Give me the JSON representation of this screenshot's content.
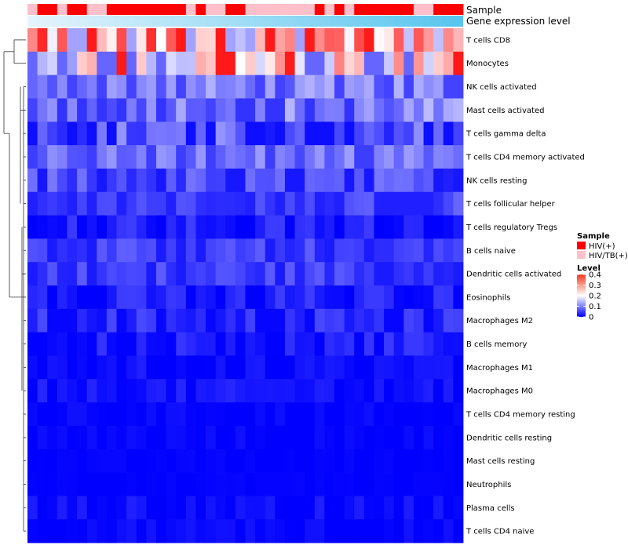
{
  "chart_data": {
    "type": "heatmap",
    "annotations": {
      "sample_label": "Sample",
      "gene_label": "Gene expression level"
    },
    "rows": [
      "T cells CD8",
      "Monocytes",
      "NK cells activated",
      "Mast cells activated",
      "T cells gamma delta",
      "T cells CD4 memory activated",
      "NK cells resting",
      "T cells follicular helper",
      "T cells regulatory  Tregs",
      "B cells naive",
      "Dendritic cells activated",
      "Eosinophils",
      "Macrophages M2",
      "B cells memory",
      "Macrophages M1",
      "Macrophages M0",
      "T cells CD4 memory resting",
      "Dendritic cells resting",
      "Mast cells resting",
      "Neutrophils",
      "Plasma cells",
      "T cells CD4 naive"
    ],
    "samples": [
      "P",
      "R",
      "R",
      "P",
      "R",
      "R",
      "P",
      "P",
      "R",
      "R",
      "R",
      "R",
      "R",
      "R",
      "R",
      "R",
      "P",
      "R",
      "P",
      "P",
      "R",
      "R",
      "P",
      "P",
      "P",
      "P",
      "P",
      "P",
      "P",
      "R",
      "P",
      "R",
      "P",
      "R",
      "R",
      "R",
      "R",
      "R",
      "R",
      "P",
      "P",
      "R",
      "R",
      "R"
    ],
    "row_means": [
      0.26,
      0.2,
      0.1,
      0.1,
      0.07,
      0.09,
      0.06,
      0.06,
      0.025,
      0.05,
      0.05,
      0.025,
      0.035,
      0.025,
      0.01,
      0.015,
      0.005,
      0.005,
      0.002,
      0.002,
      0.01,
      0.008
    ],
    "row_spread": [
      0.11,
      0.1,
      0.04,
      0.05,
      0.05,
      0.035,
      0.035,
      0.03,
      0.025,
      0.025,
      0.025,
      0.025,
      0.025,
      0.02,
      0.015,
      0.015,
      0.008,
      0.008,
      0.004,
      0.003,
      0.015,
      0.01
    ],
    "color_scale": {
      "min": 0,
      "mid": 0.2,
      "max": 0.4,
      "low": "#0000ff",
      "midColor": "#ffffff",
      "high": "#ff0000"
    },
    "legend": {
      "sample_title": "Sample",
      "sample_items": [
        {
          "label": "HIV(+)",
          "color": "#ff0000"
        },
        {
          "label": "HIV/TB(+)",
          "color": "#ffc0cb"
        }
      ],
      "level_title": "Level",
      "level_ticks": [
        "0.4",
        "0.3",
        "0.2",
        "0.1",
        "0"
      ],
      "level_values": [
        0.4,
        0.3,
        0.2,
        0.1,
        0
      ]
    },
    "gene_gradient": {
      "start": "#e6f4fc",
      "end": "#56c5ee"
    },
    "dendrogram": true
  }
}
